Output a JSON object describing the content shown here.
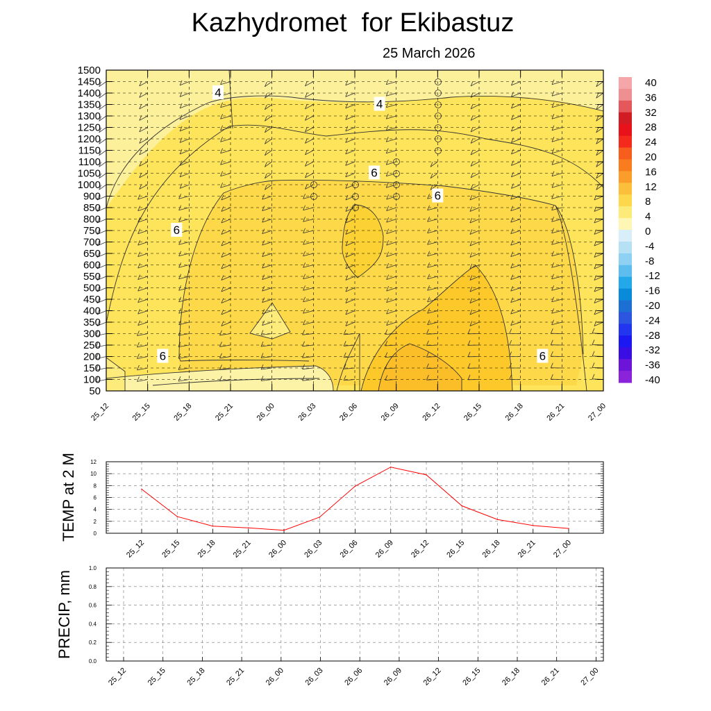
{
  "title": "Kazhydromet  for Ekibastuz",
  "subtitle": "25 March 2026",
  "chart_data": [
    {
      "type": "heatmap",
      "name": "cross-section",
      "x_categories": [
        "25_12",
        "25_15",
        "25_18",
        "25_21",
        "26_00",
        "26_03",
        "26_06",
        "26_09",
        "26_12",
        "26_15",
        "26_18",
        "26_21",
        "27_00"
      ],
      "y_ticks": [
        50,
        100,
        150,
        200,
        250,
        300,
        350,
        400,
        450,
        500,
        550,
        600,
        650,
        700,
        750,
        800,
        850,
        900,
        1000,
        1050,
        1100,
        1150,
        1200,
        1250,
        1300,
        1350,
        1400,
        1450,
        1500
      ],
      "contour_labels": [
        {
          "value": "4",
          "x": "25_21",
          "level": 1400
        },
        {
          "value": "4",
          "x": "26_09",
          "level": 1350
        },
        {
          "value": "6",
          "x": "26_06",
          "level": 1050
        },
        {
          "value": "6",
          "x": "26_12",
          "level": 900
        },
        {
          "value": "6",
          "x": "25_18",
          "level": 750
        },
        {
          "value": "6",
          "x": "25_18",
          "level": 200
        },
        {
          "value": "6",
          "x": "26_21",
          "level": 200
        }
      ],
      "colorbar": {
        "labels": [
          "40",
          "36",
          "32",
          "28",
          "24",
          "20",
          "16",
          "12",
          "8",
          "4",
          "0",
          "-4",
          "-8",
          "-12",
          "-16",
          "-20",
          "-24",
          "-28",
          "-32",
          "-36",
          "-40"
        ],
        "colors": [
          "#f4a6a8",
          "#ee8f92",
          "#e4585c",
          "#d21c24",
          "#e8121a",
          "#f42a1d",
          "#f75d1c",
          "#f97c1e",
          "#fb9d2a",
          "#fbbf3b",
          "#fdd84c",
          "#fdeb79",
          "#fef6b5",
          "#d8eef8",
          "#b6e1f5",
          "#8ed1f3",
          "#5dbdef",
          "#23a8ea",
          "#0a8bd9",
          "#1c6fd3",
          "#2c56e0",
          "#2236ef",
          "#1b18f2",
          "#3a0de3",
          "#6c14d8",
          "#8a23d9"
        ]
      },
      "time_labels": [
        "25_12",
        "25_15",
        "25_18",
        "25_21",
        "26_00",
        "26_03",
        "26_06",
        "26_09",
        "26_12",
        "26_15",
        "26_18",
        "26_21",
        "27_00"
      ]
    },
    {
      "type": "line",
      "name": "temperature",
      "ylabel": "TEMP at 2 M",
      "categories": [
        "25_12",
        "25_15",
        "25_18",
        "25_21",
        "26_00",
        "26_03",
        "26_06",
        "26_09",
        "26_12",
        "26_15",
        "26_18",
        "26_21",
        "27_00"
      ],
      "values": [
        7.4,
        2.8,
        1.2,
        0.9,
        0.5,
        2.7,
        7.9,
        11.1,
        9.8,
        4.6,
        2.3,
        1.3,
        0.8
      ],
      "ylim": [
        0,
        12
      ],
      "yticks": [
        "0",
        "2",
        "4",
        "6",
        "8",
        "10",
        "12"
      ],
      "color": "#ff0000"
    },
    {
      "type": "line",
      "name": "precipitation",
      "ylabel": "PRECIP, mm",
      "categories": [
        "25_12",
        "25_15",
        "25_18",
        "25_21",
        "26_00",
        "26_03",
        "26_06",
        "26_09",
        "26_12",
        "26_15",
        "26_18",
        "26_21",
        "27_00"
      ],
      "values": [
        0,
        0,
        0,
        0,
        0,
        0,
        0,
        0,
        0,
        0,
        0,
        0,
        0
      ],
      "ylim": [
        0,
        1.0
      ],
      "yticks": [
        "0.0",
        "0.2",
        "0.4",
        "0.6",
        "0.8",
        "1.0"
      ],
      "color": "#008000"
    }
  ]
}
